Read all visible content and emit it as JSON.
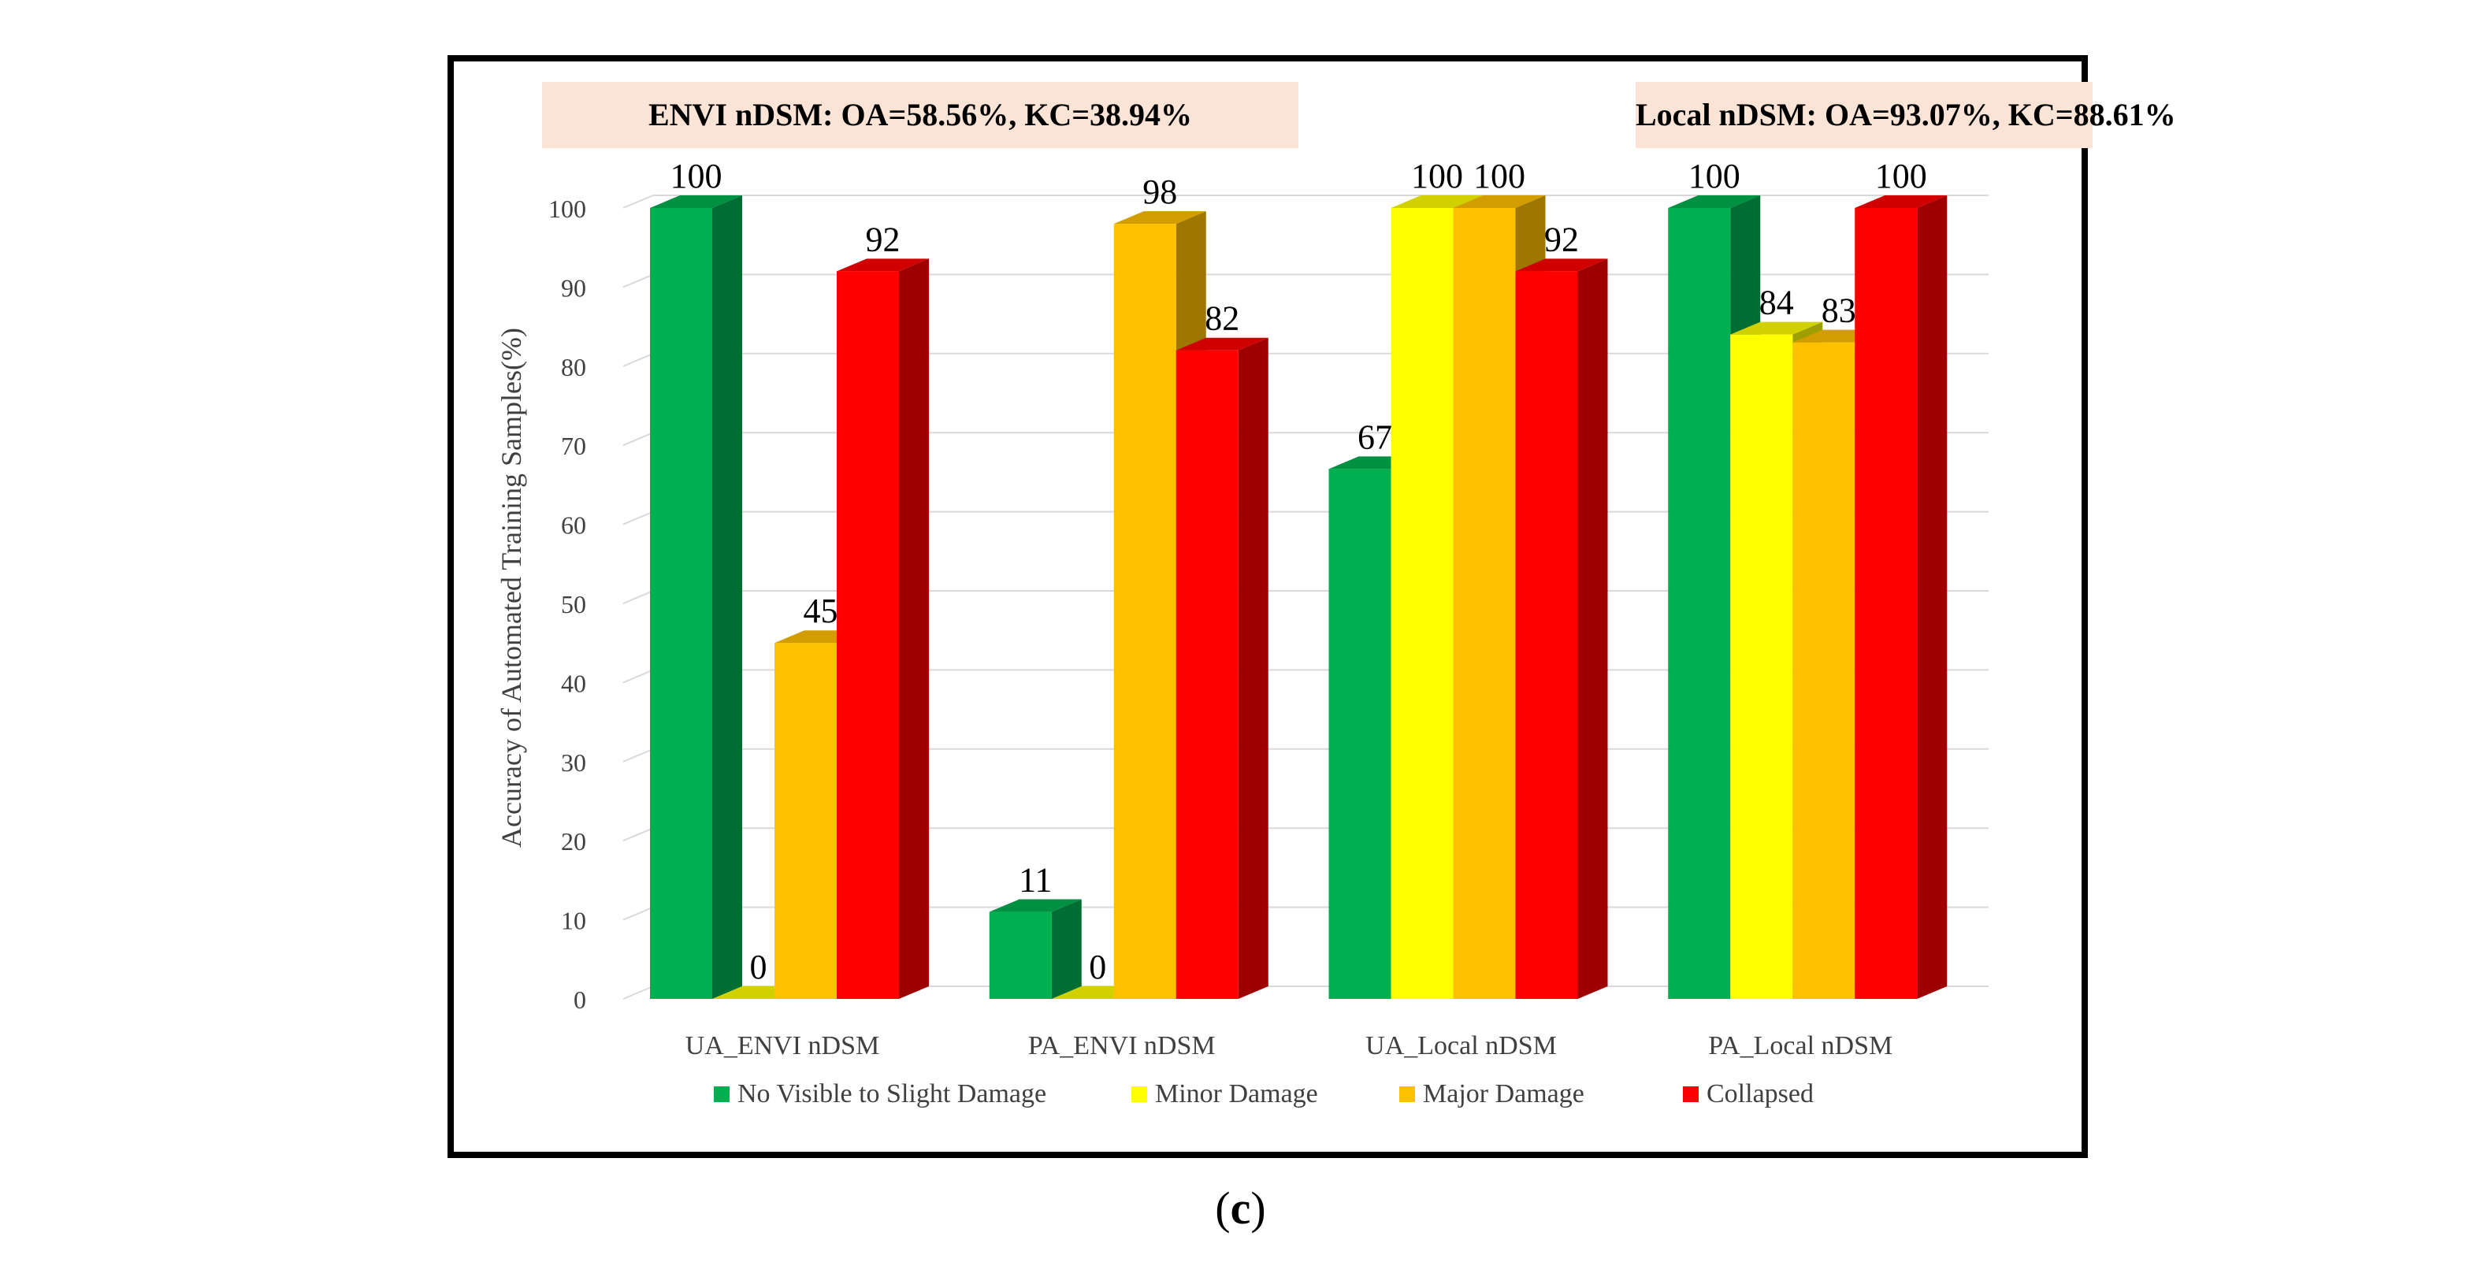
{
  "chart_data": {
    "type": "bar",
    "style": "3d-clustered-column",
    "ylabel": "Accuracy of Automated Training Samples(%)",
    "xlabel": "",
    "ylim": [
      0,
      100
    ],
    "ytick_step": 10,
    "yticks": [
      "0",
      "10",
      "20",
      "30",
      "40",
      "50",
      "60",
      "70",
      "80",
      "90",
      "100"
    ],
    "grid": true,
    "legend_position": "bottom",
    "categories": [
      "UA_ENVI nDSM",
      "PA_ENVI nDSM",
      "UA_Local nDSM",
      "PA_Local nDSM"
    ],
    "series": [
      {
        "name": "No Visible to Slight Damage",
        "color": "#00b050",
        "values": [
          100,
          11,
          67,
          100
        ]
      },
      {
        "name": "Minor Damage",
        "color": "#ffff00",
        "values": [
          0,
          0,
          100,
          84
        ]
      },
      {
        "name": "Major Damage",
        "color": "#ffc000",
        "values": [
          45,
          98,
          100,
          83
        ]
      },
      {
        "name": "Collapsed",
        "color": "#ff0000",
        "values": [
          92,
          82,
          92,
          100
        ]
      }
    ],
    "data_labels": [
      [
        "100",
        "11",
        "67",
        "100"
      ],
      [
        "0",
        "0",
        "100",
        "84"
      ],
      [
        "45",
        "98",
        "100",
        "83"
      ],
      [
        "92",
        "82",
        "92",
        "100"
      ]
    ],
    "annotations": [
      {
        "text": "ENVI nDSM: OA=58.56%,  KC=38.94%"
      },
      {
        "text": "Local nDSM: OA=93.07%,  KC=88.61%"
      }
    ]
  },
  "caption": {
    "text": "(c)",
    "letter": "c"
  },
  "colors": {
    "banner_bg": "#fbe4d5",
    "grid": "#d9d9d9",
    "text": "#000000"
  }
}
